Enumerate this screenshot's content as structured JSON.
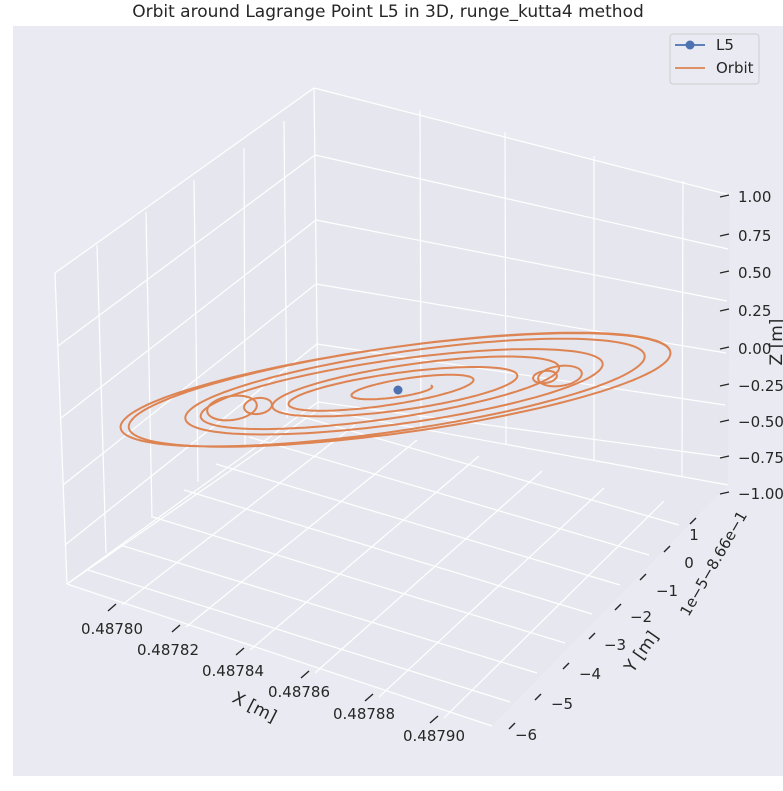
{
  "chart_data": {
    "type": "line",
    "projection": "3d",
    "title": "Orbit around Lagrange Point L5 in 3D, runge_kutta4 method",
    "xlabel": "X [m]",
    "ylabel": "Y [m]",
    "zlabel": "Z [m]",
    "x_ticks": [
      "0.48780",
      "0.48782",
      "0.48784",
      "0.48786",
      "0.48788",
      "0.48790"
    ],
    "y_ticks": [
      "1",
      "0",
      "−1",
      "−2",
      "−3",
      "−4",
      "−5",
      "−6"
    ],
    "z_ticks": [
      "1.00",
      "0.75",
      "0.50",
      "0.25",
      "0.00",
      "−0.25",
      "−0.50",
      "−0.75",
      "−1.00"
    ],
    "y_offset_text": "1e−5−8.66e−1",
    "xlim": [
      0.487787,
      0.487915
    ],
    "ylim": [
      -0.86606,
      -0.86599
    ],
    "zlim": [
      -1.0,
      1.0
    ],
    "grid": true,
    "legend_placement": "top-right",
    "legend": [
      "L5",
      "Orbit"
    ],
    "series": [
      {
        "name": "L5",
        "marker": "o",
        "x": [
          0.487847
        ],
        "y": [
          -0.866025
        ],
        "z": [
          0.0
        ]
      },
      {
        "name": "Orbit",
        "kind": "spiral-orbit",
        "center_x": 0.487847,
        "center_y": -0.866025,
        "z": 0.0,
        "max_amplitude_x": 6.4e-05,
        "max_amplitude_y": 1.8e-05,
        "loops": 7
      }
    ],
    "colors": {
      "background": "#eaeaf2",
      "pane_back": "#e6e6ee",
      "pane_floor": "#e7e7ef",
      "grid": "#ffffff",
      "l5": "#4c72b0",
      "orbit": "#dd8452",
      "text": "#262626"
    }
  }
}
